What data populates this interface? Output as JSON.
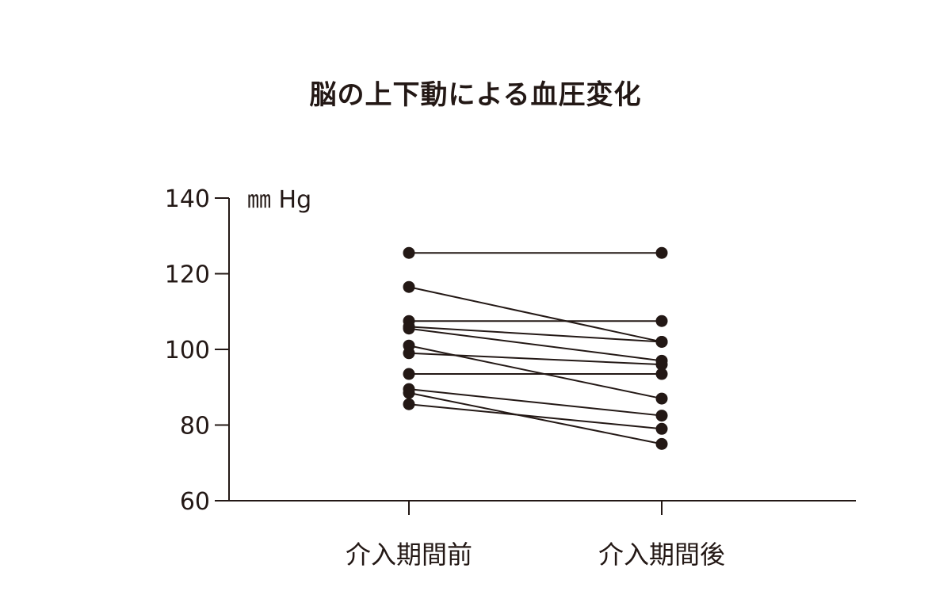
{
  "chart_data": {
    "type": "line",
    "title": "脳の上下動による血圧変化",
    "ylabel": "㎜ Hg",
    "xlabel": "",
    "categories": [
      "介入期間前",
      "介入期間後"
    ],
    "ylim": [
      60,
      140
    ],
    "yticks": [
      60,
      80,
      100,
      120,
      140
    ],
    "grid": false,
    "legend": "none",
    "color": "#231815",
    "series": [
      {
        "values": [
          125.5,
          125.5
        ]
      },
      {
        "values": [
          116.5,
          102.0
        ]
      },
      {
        "values": [
          107.5,
          107.5
        ]
      },
      {
        "values": [
          106.0,
          102.0
        ]
      },
      {
        "values": [
          105.5,
          97.0
        ]
      },
      {
        "values": [
          101.0,
          87.0
        ]
      },
      {
        "values": [
          99.0,
          96.0
        ]
      },
      {
        "values": [
          93.5,
          93.5
        ]
      },
      {
        "values": [
          89.5,
          82.5
        ]
      },
      {
        "values": [
          88.5,
          75.0
        ]
      },
      {
        "values": [
          85.5,
          79.0
        ]
      }
    ]
  }
}
